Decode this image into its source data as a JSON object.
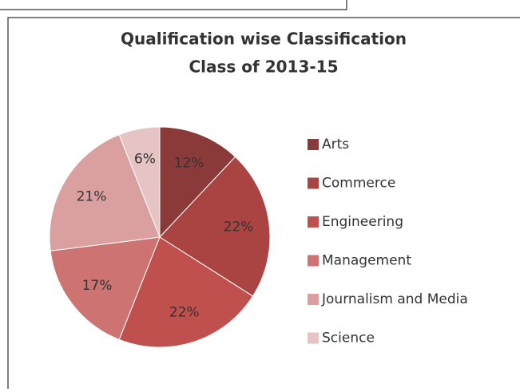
{
  "chart_data": {
    "type": "pie",
    "title": "Qualification wise Classification",
    "subtitle": "Class of 2013-15",
    "categories": [
      "Arts",
      "Commerce",
      "Engineering",
      "Management",
      "Journalism and Media",
      "Science"
    ],
    "values": [
      12,
      22,
      22,
      17,
      21,
      6
    ],
    "value_labels": [
      "12%",
      "22%",
      "22%",
      "17%",
      "21%",
      "6%"
    ],
    "colors": [
      "#8b3a3a",
      "#aa4443",
      "#c0504d",
      "#cd7371",
      "#d9a09f",
      "#e6c4c4"
    ],
    "legend": "right"
  }
}
